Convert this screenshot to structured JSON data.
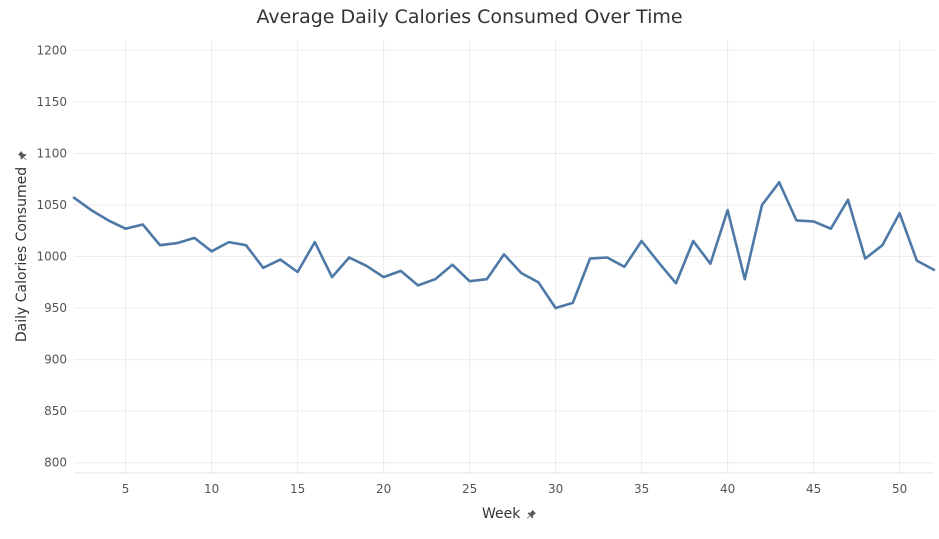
{
  "chart_data": {
    "type": "line",
    "title": "Average Daily Calories Consumed Over Time",
    "xlabel": "Week",
    "ylabel": "Daily Calories Consumed",
    "xlim": [
      2,
      52
    ],
    "ylim": [
      790,
      1210
    ],
    "x_ticks": [
      5,
      10,
      15,
      20,
      25,
      30,
      35,
      40,
      45,
      50
    ],
    "y_ticks": [
      800,
      850,
      900,
      950,
      1000,
      1050,
      1100,
      1150,
      1200
    ],
    "grid": true,
    "line_color": "#4e79a7",
    "series": [
      {
        "x": [
          2,
          3,
          4,
          5,
          6,
          7,
          8,
          9,
          10,
          11,
          12,
          13,
          14,
          15,
          16,
          17,
          18,
          19,
          20,
          21,
          22,
          23,
          24,
          25,
          26,
          27,
          28,
          29,
          30,
          31,
          32,
          33,
          34,
          35,
          36,
          37,
          38,
          39,
          40,
          41,
          42,
          43,
          44,
          45,
          46,
          47,
          48,
          49,
          50,
          51,
          52
        ],
        "values": [
          1057,
          1045,
          1035,
          1027,
          1031,
          1011,
          1013,
          1018,
          1005,
          1014,
          1011,
          989,
          997,
          985,
          1014,
          980,
          999,
          991,
          980,
          986,
          972,
          978,
          992,
          976,
          978,
          1002,
          984,
          975,
          950,
          955,
          998,
          999,
          990,
          1015,
          994,
          974,
          1015,
          993,
          1045,
          978,
          1050,
          1072,
          1035,
          1034,
          1027,
          1055,
          998,
          1011,
          1042,
          996,
          987
        ]
      }
    ]
  }
}
